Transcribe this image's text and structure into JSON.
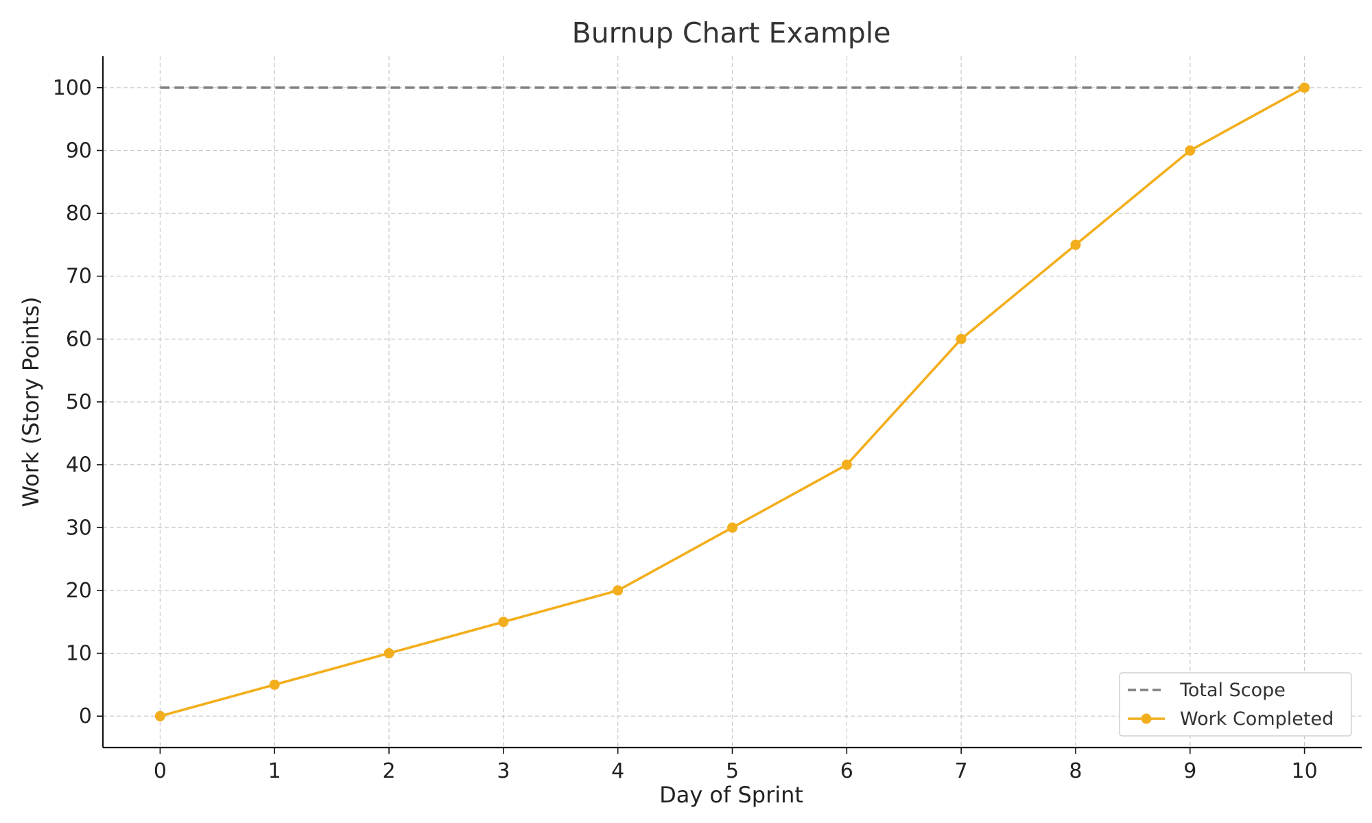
{
  "chart_data": {
    "type": "line",
    "title": "Burnup Chart Example",
    "xlabel": "Day of Sprint",
    "ylabel": "Work (Story Points)",
    "x": [
      0,
      1,
      2,
      3,
      4,
      5,
      6,
      7,
      8,
      9,
      10
    ],
    "xlim": [
      -0.5,
      10.5
    ],
    "ylim": [
      -5,
      105
    ],
    "x_ticks": [
      0,
      1,
      2,
      3,
      4,
      5,
      6,
      7,
      8,
      9,
      10
    ],
    "y_ticks": [
      0,
      10,
      20,
      30,
      40,
      50,
      60,
      70,
      80,
      90,
      100
    ],
    "grid": true,
    "legend_position": "bottom-right",
    "series": [
      {
        "name": "Total Scope",
        "values": [
          100,
          100,
          100,
          100,
          100,
          100,
          100,
          100,
          100,
          100,
          100
        ],
        "color": "#808080",
        "style": "dashed",
        "markers": false
      },
      {
        "name": "Work Completed",
        "values": [
          0,
          5,
          10,
          15,
          20,
          30,
          40,
          60,
          75,
          90,
          100
        ],
        "color": "#F2AE1C",
        "style": "solid",
        "markers": true
      }
    ]
  }
}
